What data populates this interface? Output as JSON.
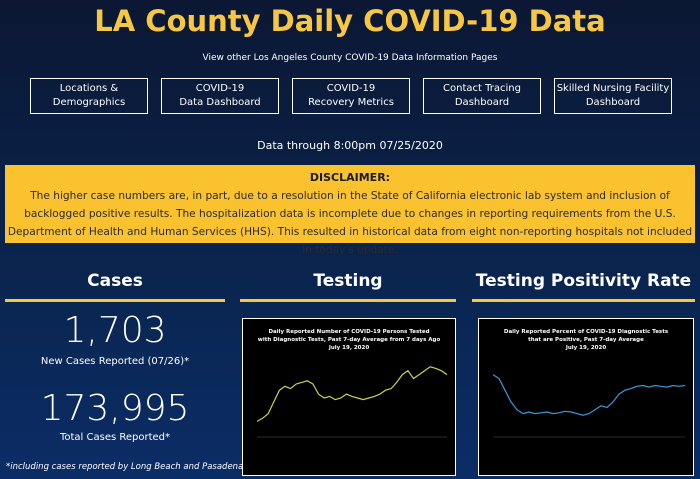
{
  "header": {
    "title": "LA County Daily COVID-19 Data",
    "subtitle": "View other Los Angeles County COVID-19 Data Information Pages"
  },
  "nav": [
    [
      "Locations &",
      "Demographics"
    ],
    [
      "COVID-19",
      "Data Dashboard"
    ],
    [
      "COVID-19",
      "Recovery Metrics"
    ],
    [
      "Contact Tracing",
      "Dashboard"
    ],
    [
      "Skilled Nursing Facility",
      "Dashboard"
    ]
  ],
  "data_through": "Data through 8:00pm 07/25/2020",
  "disclaimer": {
    "heading": "DISCLAIMER:",
    "text": "The higher case numbers are, in part, due to a resolution in the State of California electronic lab system and inclusion of backlogged positive results. The hospitalization data is incomplete due to changes in reporting requirements from the U.S. Department of Health and Human Services (HHS). This resulted in historical data from eight non-reporting hospitals not included in today's update."
  },
  "cases": {
    "heading": "Cases",
    "new_cases": "1,703",
    "new_cases_label": "New Cases Reported (07/26)*",
    "total_cases": "173,995",
    "total_cases_label": "Total Cases Reported*",
    "footnote": "*including cases reported by Long Beach and Pasadena"
  },
  "testing": {
    "heading": "Testing",
    "chart": {
      "type": "line",
      "title": [
        "Daily Reported Number of COVID-19 Persons Tested",
        "with Diagnostic Tests, Past 7-day Average from 7 days Ago",
        "July 19, 2020"
      ],
      "color": "#c8d24a",
      "ylim": [
        0,
        100
      ],
      "values": [
        20,
        24,
        30,
        45,
        60,
        65,
        62,
        68,
        70,
        72,
        68,
        55,
        50,
        52,
        48,
        50,
        55,
        52,
        50,
        48,
        50,
        52,
        55,
        60,
        62,
        70,
        80,
        85,
        75,
        80,
        85,
        90,
        88,
        85,
        80
      ]
    }
  },
  "positivity": {
    "heading": "Testing Positivity Rate",
    "chart": {
      "type": "line",
      "title": [
        "Daily Reported Percent of COVID-19 Diagnostic Tests",
        "that are Positive, Past 7-day Average",
        "July 19, 2020"
      ],
      "color": "#3a9ad9",
      "ylim": [
        0,
        100
      ],
      "values": [
        80,
        75,
        60,
        45,
        35,
        30,
        32,
        30,
        31,
        32,
        30,
        31,
        33,
        32,
        30,
        28,
        30,
        35,
        40,
        38,
        45,
        55,
        60,
        62,
        65,
        66,
        64,
        66,
        65,
        64,
        66,
        65,
        66
      ]
    }
  }
}
